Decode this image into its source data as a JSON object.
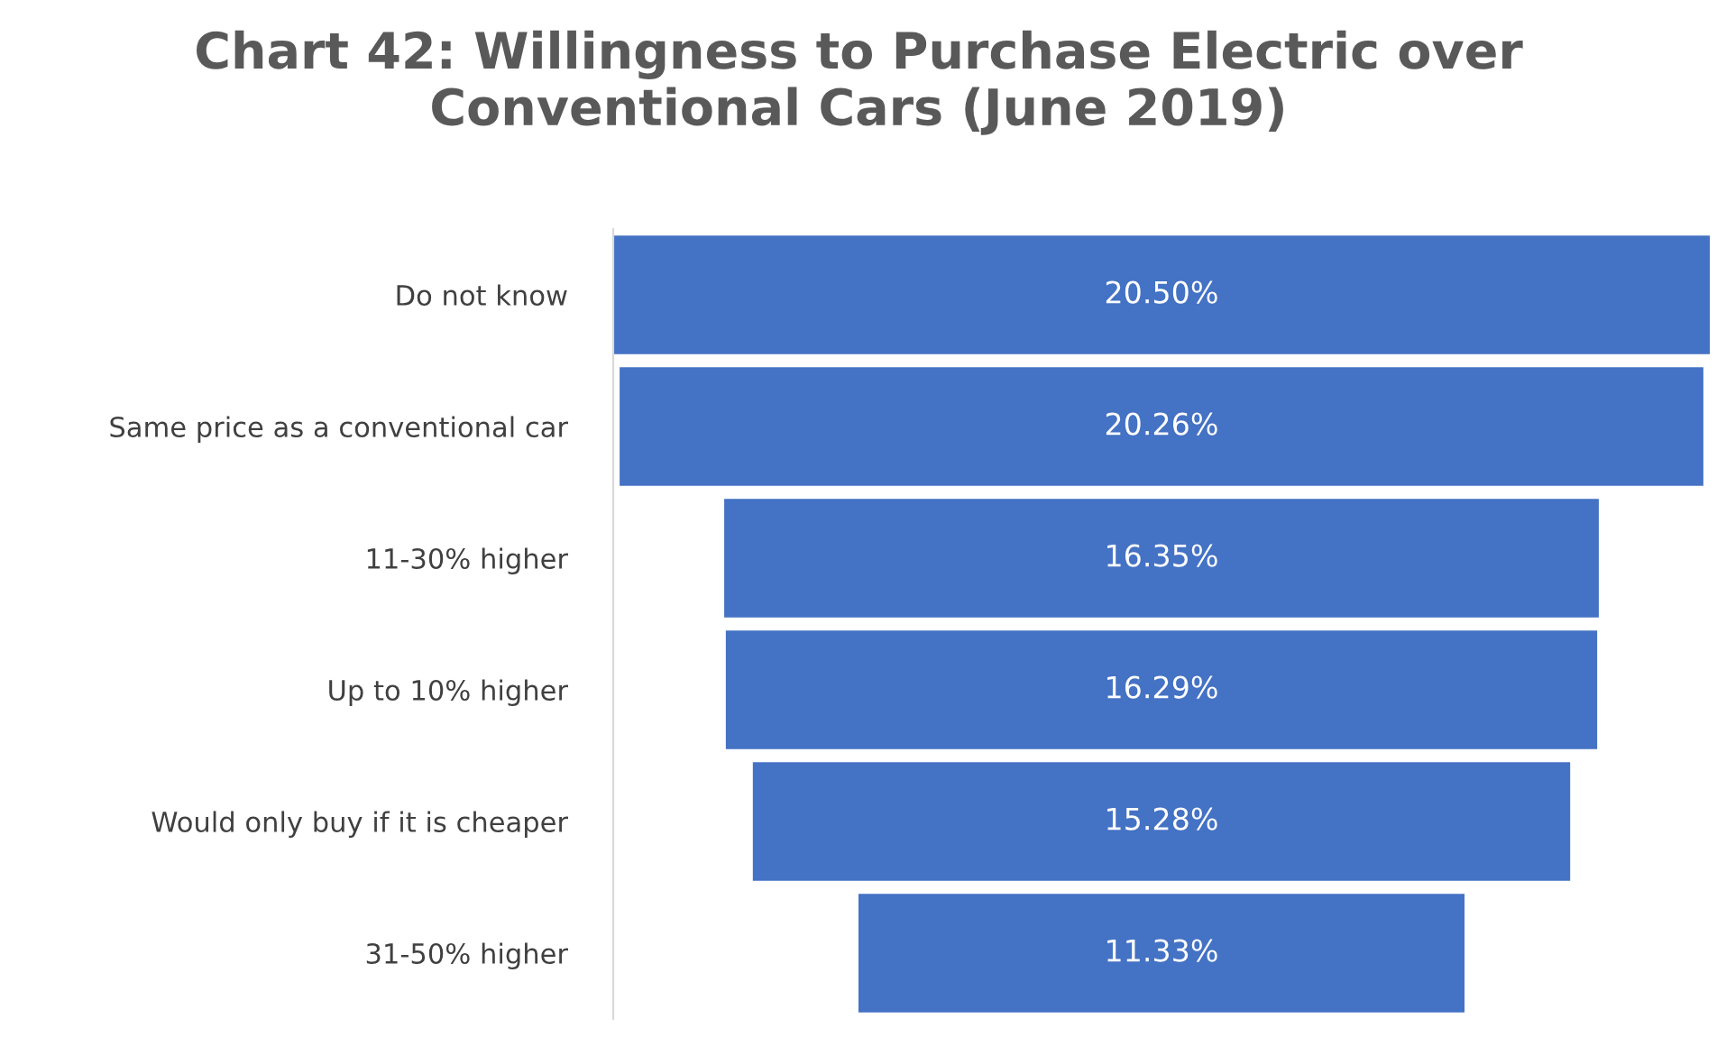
{
  "chart_data": {
    "type": "other",
    "title": "Chart 42: Willingness to Purchase Electric over Conventional Cars (June 2019)",
    "categories": [
      "Do not know",
      "Same price as a conventional car",
      "11-30% higher",
      "Up to 10% higher",
      "Would only buy if it is cheaper",
      "31-50% higher"
    ],
    "values": [
      20.5,
      20.26,
      16.35,
      16.29,
      15.28,
      11.33
    ],
    "value_labels": [
      "20.50%",
      "20.26%",
      "16.35%",
      "16.29%",
      "15.28%",
      "11.33%"
    ],
    "color": "#4472c4"
  }
}
